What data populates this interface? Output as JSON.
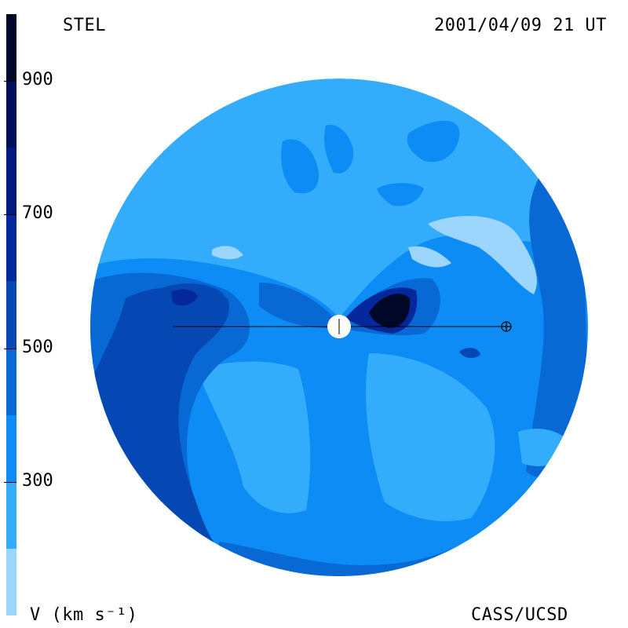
{
  "header": {
    "observatory": "STEL",
    "timestamp": "2001/04/09 21 UT"
  },
  "footer": {
    "units_label": "V (km s⁻¹)",
    "credit": "CASS/UCSD"
  },
  "colorbar": {
    "min": 100,
    "max": 1000,
    "ticks": [
      {
        "value": 900,
        "label": "900"
      },
      {
        "value": 700,
        "label": "700"
      },
      {
        "value": 500,
        "label": "500"
      },
      {
        "value": 300,
        "label": "300"
      }
    ],
    "bands": [
      {
        "from": 100,
        "to": 200,
        "color": "#9cd6fc"
      },
      {
        "from": 200,
        "to": 300,
        "color": "#34acfc"
      },
      {
        "from": 300,
        "to": 400,
        "color": "#0c8cf4"
      },
      {
        "from": 400,
        "to": 500,
        "color": "#0868d4"
      },
      {
        "from": 500,
        "to": 600,
        "color": "#0548b4"
      },
      {
        "from": 600,
        "to": 700,
        "color": "#03289c"
      },
      {
        "from": 700,
        "to": 800,
        "color": "#021a80"
      },
      {
        "from": 800,
        "to": 900,
        "color": "#010f5a"
      },
      {
        "from": 900,
        "to": 1000,
        "color": "#000728"
      }
    ]
  },
  "map": {
    "markers": [
      "sun-marker",
      "earth-marker"
    ]
  }
}
